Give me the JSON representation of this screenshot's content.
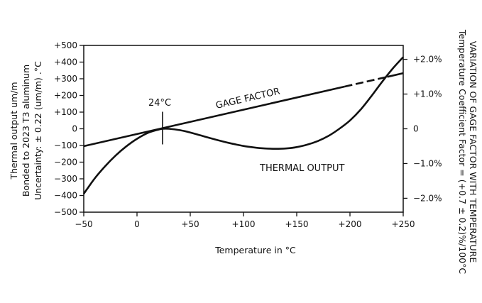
{
  "chart_data": {
    "type": "line",
    "xlabel": "Temperature in °C",
    "ylabel_left": [
      "Thermal output um/m",
      "Bonded to 2023 T3 aluminum",
      "Uncertainty:  ± 0.22 (um/m)  .°C"
    ],
    "ylabel_right": [
      "Temperature Coefficient Factor = (+0.7 ± 0.2)%/100°C",
      "VARIATION OF GAGE FACTOR WITH TEMPERATURE"
    ],
    "xlim": [
      -50,
      250
    ],
    "ylim_left": [
      -500,
      500
    ],
    "ylim_right": [
      -2.4,
      2.4
    ],
    "x_ticks": [
      "−50",
      "0",
      "+50",
      "+100",
      "+150",
      "+200",
      "+250"
    ],
    "x_tick_values": [
      -50,
      0,
      50,
      100,
      150,
      200,
      250
    ],
    "y_ticks_left": [
      "+500",
      "+400",
      "+300",
      "+200",
      "+100",
      "0",
      "−100",
      "−200",
      "−300",
      "−400",
      "−500"
    ],
    "y_tick_values_left": [
      500,
      400,
      300,
      200,
      100,
      0,
      -100,
      -200,
      -300,
      -400,
      -500
    ],
    "y_ticks_right": [
      "+2.0%",
      "+1.0%",
      "0",
      "−1.0%",
      "−2.0%"
    ],
    "y_tick_values_right": [
      2,
      1,
      0,
      -1,
      -2
    ],
    "annotations": {
      "ref_temp": "24°C",
      "gage_factor": "GAGE FACTOR",
      "thermal_output": "THERMAL OUTPUT"
    },
    "series": [
      {
        "name": "THERMAL OUTPUT",
        "axis": "left",
        "x": [
          -50,
          -40,
          -30,
          -20,
          -10,
          0,
          10,
          20,
          24,
          30,
          40,
          50,
          60,
          70,
          80,
          90,
          100,
          110,
          120,
          130,
          140,
          150,
          160,
          170,
          180,
          190,
          200,
          210,
          220,
          230,
          240,
          250
        ],
        "y": [
          -390,
          -300,
          -225,
          -160,
          -105,
          -60,
          -25,
          -5,
          0,
          0,
          -8,
          -22,
          -40,
          -58,
          -75,
          -90,
          -103,
          -112,
          -118,
          -120,
          -118,
          -110,
          -95,
          -73,
          -42,
          0,
          50,
          115,
          195,
          280,
          360,
          430
        ]
      },
      {
        "name": "GAGE FACTOR",
        "axis": "right",
        "x": [
          -50,
          250
        ],
        "y": [
          -0.5,
          1.6
        ],
        "dashed_x_range": [
          195,
          235
        ]
      }
    ]
  }
}
